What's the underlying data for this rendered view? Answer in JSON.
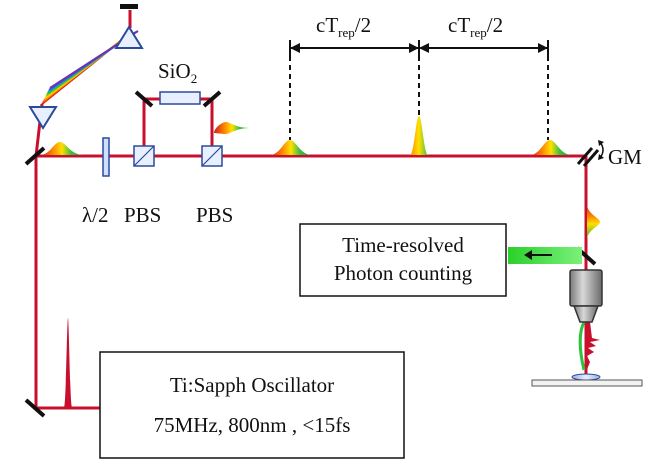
{
  "labels": {
    "half_period_left": "cT",
    "half_period_right": "cT",
    "rep_subscript": "rep",
    "half_suffix": "/2",
    "sio2_main": "SiO",
    "sio2_sub": "2",
    "gm": "GM",
    "lambda_half": "λ/2",
    "pbs_left": "PBS",
    "pbs_right": "PBS"
  },
  "boxes": {
    "detector_line1": "Time-resolved",
    "detector_line2": "Photon counting",
    "oscillator_line1": "Ti:Sapph Oscillator",
    "oscillator_line2": "75MHz, 800nm , <15fs"
  },
  "colors": {
    "beam": "#c8102e",
    "green_beam": "#33dd33",
    "mirror": "#111111",
    "optic": "#2c4a9a"
  }
}
